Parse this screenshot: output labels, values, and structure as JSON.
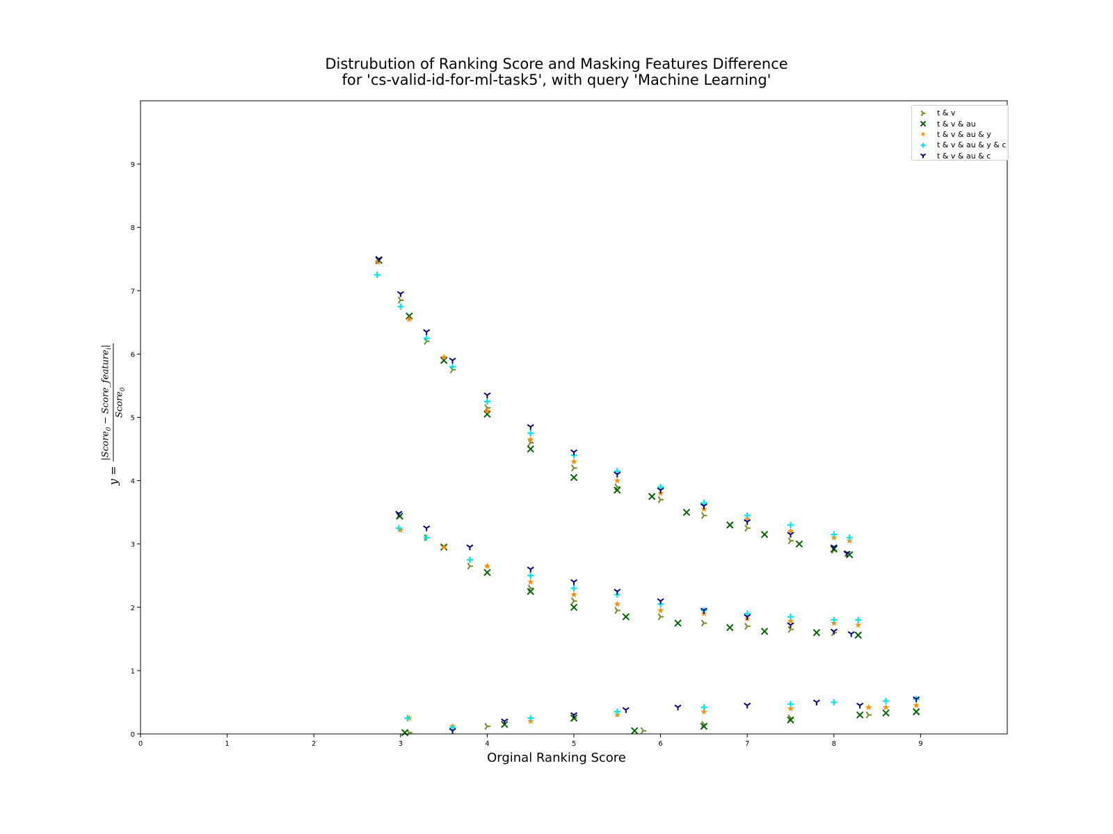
{
  "title_line1": "Distrubution of Ranking Score and Masking Features Difference",
  "title_line2": "for 'cs-valid-id-for-ml-task5', with query 'Machine Learning'",
  "xlabel": "Orginal Ranking Score",
  "ylabel": {
    "prefix": "y =",
    "numerator_left": "|Score",
    "numerator_sub0": "0",
    "numerator_mid": " − Score_feature",
    "numerator_subi": "i",
    "numerator_right": "|",
    "denominator": "Score",
    "denominator_sub": "0"
  },
  "chart_data": {
    "type": "scatter",
    "title": "Distrubution of Ranking Score and Masking Features Difference for 'cs-valid-id-for-ml-task5', with query 'Machine Learning'",
    "xlabel": "Orginal Ranking Score",
    "ylabel": "y = |Score_0 − Score_feature_i| / Score_0",
    "xlim": [
      0,
      10
    ],
    "ylim": [
      0,
      10
    ],
    "xticks": [
      "0",
      "1",
      "2",
      "3",
      "4",
      "5",
      "6",
      "7",
      "8",
      "9"
    ],
    "yticks": [
      "0",
      "1",
      "2",
      "3",
      "4",
      "5",
      "6",
      "7",
      "8",
      "9"
    ],
    "grid": false,
    "legend_position": "top-right",
    "series": [
      {
        "name": "t & v",
        "color": "#6b8e23",
        "marker": "tri-right",
        "points": [
          [
            2.74,
            7.5
          ],
          [
            3.0,
            6.85
          ],
          [
            3.3,
            6.2
          ],
          [
            3.6,
            5.75
          ],
          [
            4.0,
            5.15
          ],
          [
            4.5,
            4.6
          ],
          [
            5.0,
            4.2
          ],
          [
            5.5,
            3.9
          ],
          [
            6.0,
            3.7
          ],
          [
            6.5,
            3.45
          ],
          [
            7.0,
            3.25
          ],
          [
            7.5,
            3.05
          ],
          [
            8.0,
            2.9
          ],
          [
            8.15,
            2.85
          ],
          [
            2.98,
            3.45
          ],
          [
            3.3,
            3.1
          ],
          [
            3.8,
            2.65
          ],
          [
            4.5,
            2.3
          ],
          [
            5.0,
            2.1
          ],
          [
            5.5,
            1.95
          ],
          [
            6.0,
            1.85
          ],
          [
            6.5,
            1.75
          ],
          [
            7.0,
            1.7
          ],
          [
            7.5,
            1.65
          ],
          [
            8.0,
            1.6
          ],
          [
            3.1,
            0.02
          ],
          [
            4.0,
            0.12
          ],
          [
            5.0,
            0.25
          ],
          [
            5.8,
            0.05
          ],
          [
            6.5,
            0.15
          ],
          [
            7.5,
            0.25
          ],
          [
            8.4,
            0.3
          ]
        ]
      },
      {
        "name": "t & v & au",
        "color": "#006400",
        "marker": "x",
        "points": [
          [
            2.75,
            7.48
          ],
          [
            3.1,
            6.6
          ],
          [
            3.5,
            5.9
          ],
          [
            4.0,
            5.05
          ],
          [
            4.5,
            4.5
          ],
          [
            5.0,
            4.05
          ],
          [
            5.5,
            3.85
          ],
          [
            5.9,
            3.75
          ],
          [
            6.3,
            3.5
          ],
          [
            6.8,
            3.3
          ],
          [
            7.2,
            3.15
          ],
          [
            7.6,
            3.0
          ],
          [
            8.0,
            2.92
          ],
          [
            8.18,
            2.83
          ],
          [
            2.99,
            3.44
          ],
          [
            3.5,
            2.95
          ],
          [
            4.0,
            2.55
          ],
          [
            4.5,
            2.25
          ],
          [
            5.0,
            2.0
          ],
          [
            5.6,
            1.85
          ],
          [
            6.2,
            1.75
          ],
          [
            6.8,
            1.68
          ],
          [
            7.2,
            1.62
          ],
          [
            7.8,
            1.6
          ],
          [
            8.28,
            1.56
          ],
          [
            3.05,
            0.02
          ],
          [
            4.2,
            0.15
          ],
          [
            5.0,
            0.25
          ],
          [
            5.7,
            0.05
          ],
          [
            6.5,
            0.12
          ],
          [
            7.5,
            0.22
          ],
          [
            8.3,
            0.3
          ],
          [
            8.6,
            0.33
          ],
          [
            8.95,
            0.35
          ]
        ]
      },
      {
        "name": "t & v & au & y",
        "color": "#ff8c00",
        "marker": "star",
        "points": [
          [
            2.74,
            7.45
          ],
          [
            3.1,
            6.55
          ],
          [
            3.5,
            5.95
          ],
          [
            4.0,
            5.1
          ],
          [
            4.5,
            4.65
          ],
          [
            5.0,
            4.3
          ],
          [
            5.5,
            4.0
          ],
          [
            6.0,
            3.8
          ],
          [
            6.5,
            3.55
          ],
          [
            7.0,
            3.4
          ],
          [
            7.5,
            3.2
          ],
          [
            8.0,
            3.1
          ],
          [
            8.18,
            3.05
          ],
          [
            3.0,
            3.22
          ],
          [
            3.5,
            2.95
          ],
          [
            4.0,
            2.65
          ],
          [
            4.5,
            2.4
          ],
          [
            5.0,
            2.2
          ],
          [
            5.5,
            2.05
          ],
          [
            6.0,
            1.95
          ],
          [
            6.5,
            1.9
          ],
          [
            7.0,
            1.82
          ],
          [
            7.5,
            1.78
          ],
          [
            8.0,
            1.75
          ],
          [
            8.28,
            1.72
          ],
          [
            3.1,
            0.25
          ],
          [
            3.6,
            0.12
          ],
          [
            4.5,
            0.2
          ],
          [
            5.5,
            0.3
          ],
          [
            6.5,
            0.35
          ],
          [
            7.5,
            0.4
          ],
          [
            8.4,
            0.42
          ],
          [
            8.6,
            0.42
          ],
          [
            8.95,
            0.45
          ]
        ]
      },
      {
        "name": "t & v & au & y & c",
        "color": "#00e5e5",
        "marker": "plus",
        "points": [
          [
            2.73,
            7.25
          ],
          [
            3.0,
            6.75
          ],
          [
            3.3,
            6.25
          ],
          [
            3.6,
            5.8
          ],
          [
            4.0,
            5.25
          ],
          [
            4.5,
            4.75
          ],
          [
            5.0,
            4.4
          ],
          [
            5.5,
            4.15
          ],
          [
            6.0,
            3.9
          ],
          [
            6.5,
            3.65
          ],
          [
            7.0,
            3.45
          ],
          [
            7.5,
            3.3
          ],
          [
            8.0,
            3.15
          ],
          [
            8.18,
            3.1
          ],
          [
            2.98,
            3.25
          ],
          [
            3.3,
            3.1
          ],
          [
            3.8,
            2.75
          ],
          [
            4.5,
            2.5
          ],
          [
            5.0,
            2.3
          ],
          [
            5.5,
            2.2
          ],
          [
            6.0,
            2.05
          ],
          [
            6.5,
            1.95
          ],
          [
            7.0,
            1.9
          ],
          [
            7.5,
            1.85
          ],
          [
            8.0,
            1.8
          ],
          [
            8.28,
            1.8
          ],
          [
            3.08,
            0.25
          ],
          [
            3.6,
            0.1
          ],
          [
            4.5,
            0.25
          ],
          [
            5.5,
            0.35
          ],
          [
            6.5,
            0.42
          ],
          [
            7.5,
            0.47
          ],
          [
            8.0,
            0.5
          ],
          [
            8.6,
            0.52
          ],
          [
            8.95,
            0.55
          ]
        ]
      },
      {
        "name": "t & v & au & c",
        "color": "#000080",
        "marker": "tri-down",
        "points": [
          [
            2.75,
            7.5
          ],
          [
            3.0,
            6.95
          ],
          [
            3.3,
            6.35
          ],
          [
            3.6,
            5.9
          ],
          [
            4.0,
            5.35
          ],
          [
            4.5,
            4.85
          ],
          [
            5.0,
            4.45
          ],
          [
            5.5,
            4.1
          ],
          [
            6.0,
            3.85
          ],
          [
            6.5,
            3.6
          ],
          [
            7.0,
            3.35
          ],
          [
            7.5,
            3.15
          ],
          [
            8.0,
            2.95
          ],
          [
            8.15,
            2.85
          ],
          [
            2.98,
            3.48
          ],
          [
            3.3,
            3.25
          ],
          [
            3.8,
            2.95
          ],
          [
            4.5,
            2.6
          ],
          [
            5.0,
            2.4
          ],
          [
            5.5,
            2.25
          ],
          [
            6.0,
            2.1
          ],
          [
            6.5,
            1.95
          ],
          [
            7.0,
            1.85
          ],
          [
            7.5,
            1.72
          ],
          [
            8.0,
            1.62
          ],
          [
            8.2,
            1.58
          ],
          [
            3.6,
            0.05
          ],
          [
            4.2,
            0.2
          ],
          [
            5.0,
            0.3
          ],
          [
            5.6,
            0.38
          ],
          [
            6.2,
            0.42
          ],
          [
            7.0,
            0.45
          ],
          [
            7.8,
            0.5
          ],
          [
            8.3,
            0.45
          ],
          [
            8.95,
            0.55
          ]
        ]
      }
    ]
  }
}
